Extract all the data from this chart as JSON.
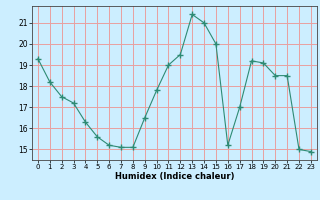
{
  "x": [
    0,
    1,
    2,
    3,
    4,
    5,
    6,
    7,
    8,
    9,
    10,
    11,
    12,
    13,
    14,
    15,
    16,
    17,
    18,
    19,
    20,
    21,
    22,
    23
  ],
  "y": [
    19.3,
    18.2,
    17.5,
    17.2,
    16.3,
    15.6,
    15.2,
    15.1,
    15.1,
    16.5,
    17.8,
    19.0,
    19.5,
    21.4,
    21.0,
    20.0,
    15.2,
    17.0,
    19.2,
    19.1,
    18.5,
    18.5,
    15.0,
    14.9
  ],
  "xlabel": "Humidex (Indice chaleur)",
  "line_color": "#2e8b74",
  "marker": "+",
  "marker_size": 4,
  "bg_color": "#cceeff",
  "grid_color": "#e8a0a0",
  "ylim": [
    14.5,
    21.8
  ],
  "yticks": [
    15,
    16,
    17,
    18,
    19,
    20,
    21
  ],
  "xlim": [
    -0.5,
    23.5
  ],
  "xticks": [
    0,
    1,
    2,
    3,
    4,
    5,
    6,
    7,
    8,
    9,
    10,
    11,
    12,
    13,
    14,
    15,
    16,
    17,
    18,
    19,
    20,
    21,
    22,
    23
  ]
}
